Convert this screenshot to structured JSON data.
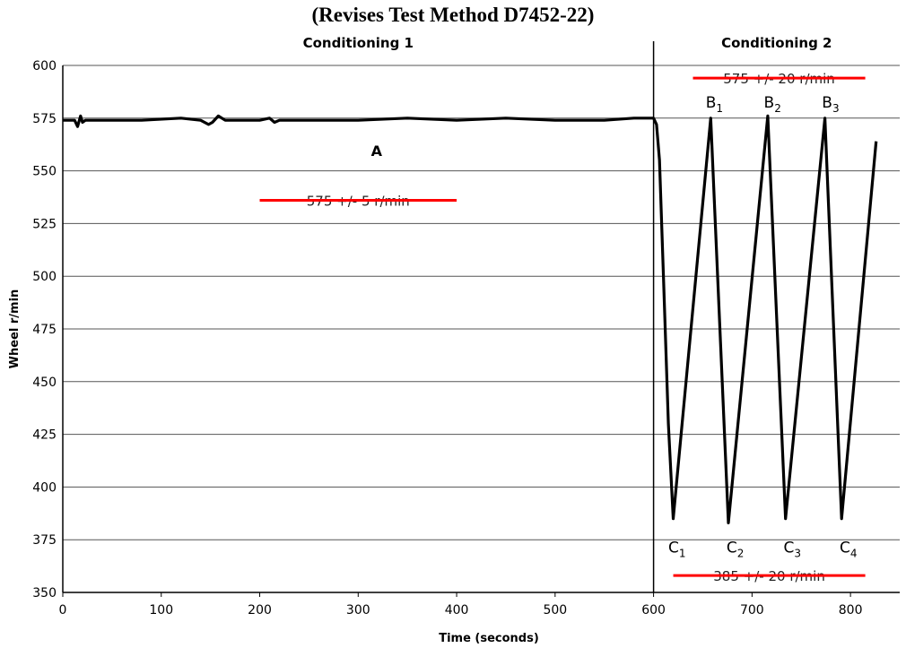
{
  "chart_data": {
    "type": "line",
    "title": "(Revises Test Method D7452-22)",
    "xlabel": "Time (seconds)",
    "ylabel": "Wheel r/min",
    "xlim": [
      0,
      850
    ],
    "ylim": [
      350,
      600
    ],
    "xticks": [
      0,
      100,
      200,
      300,
      400,
      500,
      600,
      700,
      800
    ],
    "yticks": [
      350,
      375,
      400,
      425,
      450,
      475,
      500,
      525,
      550,
      575,
      600
    ],
    "grid": "horizontal",
    "section_divider_x": 600,
    "sections": [
      {
        "label": "Conditioning 1",
        "x": 300
      },
      {
        "label": "Conditioning 2",
        "x": 725
      }
    ],
    "series": [
      {
        "x": [
          0,
          12,
          15,
          18,
          20,
          23,
          40,
          80,
          120,
          140,
          148,
          152,
          158,
          165,
          200,
          210,
          215,
          220,
          250,
          300,
          350,
          400,
          450,
          500,
          550,
          580,
          600,
          603,
          606,
          610,
          615,
          620,
          658,
          676,
          716,
          734,
          774,
          791,
          826
        ],
        "y": [
          574,
          574,
          571,
          576,
          573,
          574,
          574,
          574,
          575,
          574,
          572,
          573,
          576,
          574,
          574,
          575,
          573,
          574,
          574,
          574,
          575,
          574,
          575,
          574,
          574,
          575,
          575,
          572,
          555,
          500,
          430,
          385,
          575,
          383,
          576,
          385,
          575,
          385,
          564
        ]
      }
    ],
    "annotations": [
      {
        "label": "A",
        "x": 313,
        "y": 557
      },
      {
        "label": "B",
        "sub": "1",
        "x": 653,
        "y": 580
      },
      {
        "label": "B",
        "sub": "2",
        "x": 712,
        "y": 580
      },
      {
        "label": "B",
        "sub": "3",
        "x": 771,
        "y": 580
      },
      {
        "label": "C",
        "sub": "1",
        "x": 615,
        "y": 369
      },
      {
        "label": "C",
        "sub": "2",
        "x": 674,
        "y": 369
      },
      {
        "label": "C",
        "sub": "3",
        "x": 732,
        "y": 369
      },
      {
        "label": "C",
        "sub": "4",
        "x": 789,
        "y": 369
      }
    ],
    "tolerance_bands": [
      {
        "label": "575 +/- 5 r/min",
        "x_start": 200,
        "x_end": 400,
        "y": 536,
        "color": "#ff0000"
      },
      {
        "label": "575 +/- 20 r/min",
        "x_start": 640,
        "x_end": 815,
        "y": 594,
        "color": "#ff0000"
      },
      {
        "label": "385 +/- 20 r/min",
        "x_start": 620,
        "x_end": 815,
        "y": 358,
        "color": "#ff0000"
      }
    ],
    "colors": {
      "line": "#000000",
      "band": "#ff0000",
      "grid": "#555555"
    }
  }
}
